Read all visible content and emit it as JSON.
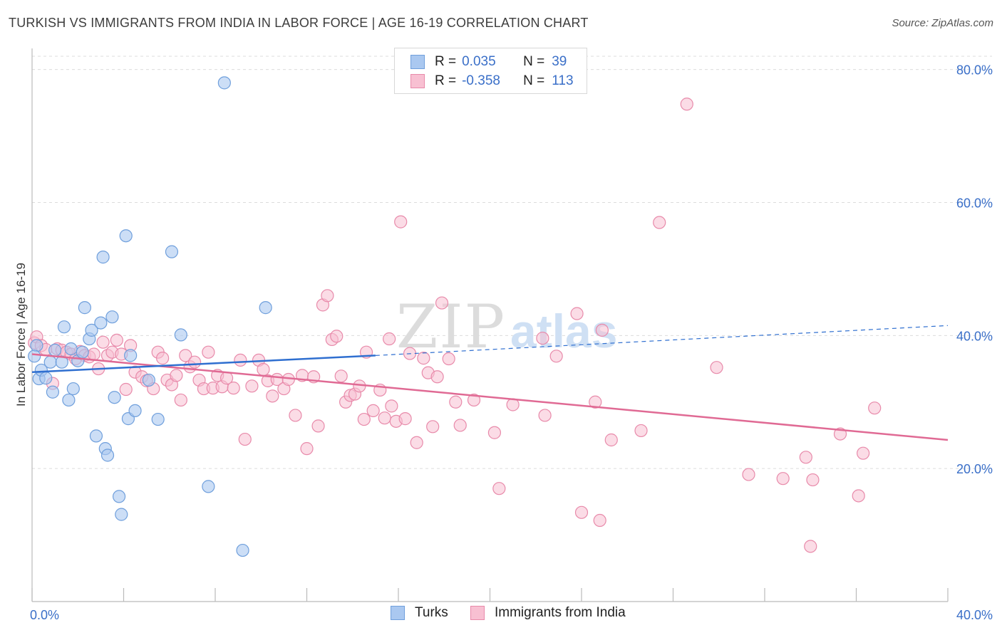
{
  "title": "TURKISH VS IMMIGRANTS FROM INDIA IN LABOR FORCE | AGE 16-19 CORRELATION CHART",
  "source": "Source: ZipAtlas.com",
  "watermark": "ZIPatlas",
  "colors": {
    "turks_fill": "#aac8f0",
    "turks_stroke": "#6f9fdc",
    "turks_line": "#2f6fd0",
    "india_fill": "#f8c0d2",
    "india_stroke": "#e88aaa",
    "india_line": "#e06a94",
    "tick_label": "#3a6fc8",
    "grid": "#dcdcdc"
  },
  "legend": {
    "rows": [
      {
        "r_label": "R =",
        "r_value": "0.035",
        "n_label": "N =",
        "n_value": "39"
      },
      {
        "r_label": "R =",
        "r_value": "-0.358",
        "n_label": "N =",
        "n_value": "113"
      }
    ]
  },
  "bottom_legend": {
    "turks": "Turks",
    "india": "Immigrants from India"
  },
  "chart_data": {
    "type": "scatter",
    "title": "TURKISH VS IMMIGRANTS FROM INDIA IN LABOR FORCE | AGE 16-19 CORRELATION CHART",
    "xlabel": "",
    "ylabel": "In Labor Force | Age 16-19",
    "xlim": [
      0,
      40
    ],
    "ylim": [
      0,
      82
    ],
    "x_tick_labels": [
      "0.0%",
      "40.0%"
    ],
    "y_ticks": [
      20,
      40,
      60,
      80
    ],
    "y_tick_labels": [
      "20.0%",
      "40.0%",
      "60.0%",
      "80.0%"
    ],
    "grid": true,
    "legend_position": "top-center",
    "series": [
      {
        "name": "Turks",
        "r": 0.035,
        "n": 39,
        "trend": {
          "x": [
            0,
            15
          ],
          "y": [
            34.5,
            37.0
          ],
          "dashed_to": [
            40,
            41.5
          ]
        },
        "points": [
          [
            0.2,
            38.5
          ],
          [
            0.3,
            33.5
          ],
          [
            0.4,
            34.8
          ],
          [
            0.6,
            33.6
          ],
          [
            0.8,
            36.0
          ],
          [
            0.9,
            31.5
          ],
          [
            1.3,
            36.0
          ],
          [
            1.4,
            41.3
          ],
          [
            1.6,
            30.3
          ],
          [
            1.7,
            38.0
          ],
          [
            1.8,
            32.0
          ],
          [
            2.0,
            36.2
          ],
          [
            2.2,
            37.5
          ],
          [
            2.3,
            44.2
          ],
          [
            2.5,
            39.5
          ],
          [
            2.6,
            40.8
          ],
          [
            2.8,
            24.9
          ],
          [
            3.0,
            41.9
          ],
          [
            3.1,
            51.8
          ],
          [
            3.2,
            23.0
          ],
          [
            3.3,
            22.0
          ],
          [
            3.5,
            42.8
          ],
          [
            3.6,
            30.7
          ],
          [
            3.8,
            15.8
          ],
          [
            3.9,
            13.1
          ],
          [
            4.1,
            55.0
          ],
          [
            4.2,
            27.5
          ],
          [
            4.3,
            37.0
          ],
          [
            4.5,
            28.7
          ],
          [
            5.1,
            33.3
          ],
          [
            5.5,
            27.4
          ],
          [
            6.1,
            52.6
          ],
          [
            6.5,
            40.1
          ],
          [
            7.7,
            17.3
          ],
          [
            8.4,
            78.0
          ],
          [
            9.2,
            7.7
          ],
          [
            10.2,
            44.2
          ],
          [
            0.1,
            36.9
          ],
          [
            1.0,
            37.8
          ]
        ]
      },
      {
        "name": "Immigrants from India",
        "r": -0.358,
        "n": 113,
        "trend": {
          "x": [
            0,
            40
          ],
          "y": [
            37.2,
            24.3
          ]
        },
        "points": [
          [
            0.1,
            38.9
          ],
          [
            0.2,
            39.8
          ],
          [
            0.4,
            38.5
          ],
          [
            0.6,
            37.9
          ],
          [
            0.9,
            32.8
          ],
          [
            1.1,
            38.0
          ],
          [
            1.3,
            37.8
          ],
          [
            1.5,
            37.5
          ],
          [
            1.7,
            37.2
          ],
          [
            1.9,
            36.5
          ],
          [
            2.1,
            37.6
          ],
          [
            2.3,
            37.0
          ],
          [
            2.5,
            36.8
          ],
          [
            2.7,
            37.2
          ],
          [
            2.9,
            35.0
          ],
          [
            3.1,
            39.0
          ],
          [
            3.3,
            37.0
          ],
          [
            3.5,
            37.5
          ],
          [
            3.7,
            39.3
          ],
          [
            3.9,
            37.2
          ],
          [
            4.1,
            31.9
          ],
          [
            4.3,
            38.5
          ],
          [
            4.5,
            34.5
          ],
          [
            4.8,
            33.8
          ],
          [
            5.0,
            33.2
          ],
          [
            5.3,
            32.0
          ],
          [
            5.5,
            37.5
          ],
          [
            5.7,
            36.6
          ],
          [
            5.9,
            33.3
          ],
          [
            6.1,
            32.6
          ],
          [
            6.3,
            34.0
          ],
          [
            6.5,
            30.3
          ],
          [
            6.7,
            37.0
          ],
          [
            6.9,
            35.3
          ],
          [
            7.1,
            36.0
          ],
          [
            7.3,
            33.3
          ],
          [
            7.5,
            32.0
          ],
          [
            7.7,
            37.5
          ],
          [
            7.9,
            32.1
          ],
          [
            8.1,
            34.0
          ],
          [
            8.3,
            32.3
          ],
          [
            8.5,
            33.6
          ],
          [
            8.8,
            32.1
          ],
          [
            9.1,
            36.3
          ],
          [
            9.3,
            24.4
          ],
          [
            9.6,
            32.4
          ],
          [
            9.9,
            36.3
          ],
          [
            10.1,
            34.9
          ],
          [
            10.3,
            33.2
          ],
          [
            10.5,
            30.9
          ],
          [
            10.7,
            33.4
          ],
          [
            11.0,
            32.0
          ],
          [
            11.2,
            33.4
          ],
          [
            11.5,
            28.0
          ],
          [
            11.8,
            34.0
          ],
          [
            12.0,
            23.0
          ],
          [
            12.3,
            33.8
          ],
          [
            12.5,
            26.4
          ],
          [
            12.7,
            44.6
          ],
          [
            12.9,
            46.0
          ],
          [
            13.1,
            39.4
          ],
          [
            13.3,
            39.9
          ],
          [
            13.5,
            33.9
          ],
          [
            13.7,
            30.0
          ],
          [
            13.9,
            31.0
          ],
          [
            14.1,
            31.2
          ],
          [
            14.3,
            32.4
          ],
          [
            14.5,
            27.4
          ],
          [
            14.6,
            37.5
          ],
          [
            14.9,
            28.7
          ],
          [
            15.2,
            31.8
          ],
          [
            15.4,
            27.6
          ],
          [
            15.7,
            29.4
          ],
          [
            15.9,
            27.1
          ],
          [
            16.1,
            57.1
          ],
          [
            16.3,
            27.5
          ],
          [
            16.5,
            37.3
          ],
          [
            16.8,
            23.9
          ],
          [
            17.1,
            36.6
          ],
          [
            17.3,
            34.4
          ],
          [
            17.5,
            26.3
          ],
          [
            17.7,
            33.8
          ],
          [
            17.9,
            44.9
          ],
          [
            18.2,
            36.5
          ],
          [
            18.5,
            30.0
          ],
          [
            18.7,
            26.5
          ],
          [
            19.3,
            30.3
          ],
          [
            20.2,
            25.4
          ],
          [
            20.4,
            17.0
          ],
          [
            21.0,
            29.6
          ],
          [
            22.3,
            39.6
          ],
          [
            22.4,
            28.0
          ],
          [
            22.9,
            36.9
          ],
          [
            23.8,
            43.3
          ],
          [
            24.0,
            13.4
          ],
          [
            24.6,
            30.0
          ],
          [
            24.8,
            12.2
          ],
          [
            25.3,
            24.3
          ],
          [
            26.6,
            25.7
          ],
          [
            27.4,
            57.0
          ],
          [
            28.6,
            74.8
          ],
          [
            29.9,
            35.2
          ],
          [
            31.3,
            19.1
          ],
          [
            32.8,
            18.5
          ],
          [
            33.8,
            21.7
          ],
          [
            34.1,
            18.3
          ],
          [
            34.0,
            8.3
          ],
          [
            35.3,
            25.2
          ],
          [
            36.1,
            15.9
          ],
          [
            36.3,
            22.3
          ],
          [
            36.8,
            29.1
          ],
          [
            24.9,
            40.8
          ],
          [
            15.6,
            39.5
          ]
        ]
      }
    ]
  }
}
